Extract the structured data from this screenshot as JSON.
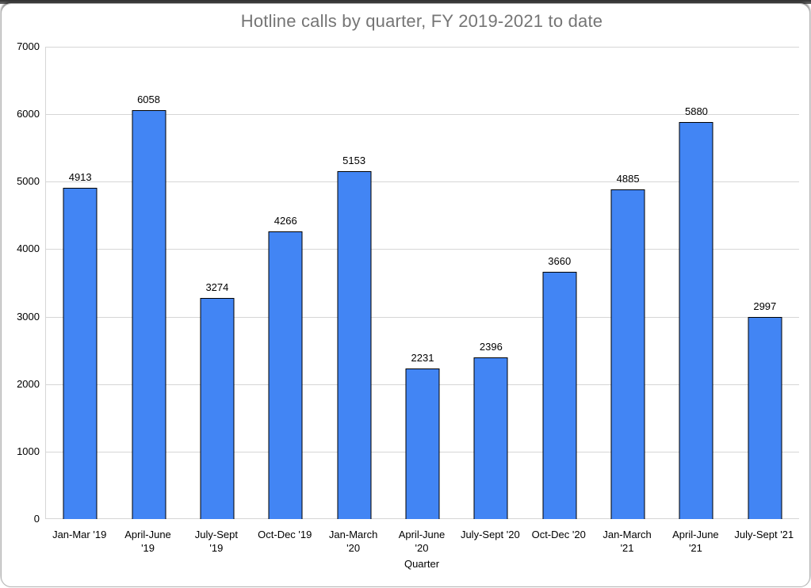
{
  "window": {
    "background_color": "#ffffff",
    "border_color": "#b4b4b4"
  },
  "chart_data": {
    "type": "bar",
    "title": "Hotline calls by quarter, FY 2019-2021 to date",
    "xlabel": "Quarter",
    "ylabel": "",
    "categories": [
      "Jan-Mar '19",
      "April-June '19",
      "July-Sept '19",
      "Oct-Dec '19",
      "Jan-March '20",
      "April-June '20",
      "July-Sept '20",
      "Oct-Dec '20",
      "Jan-March '21",
      "April-June '21",
      "July-Sept '21"
    ],
    "category_display_lines": [
      [
        "Jan-Mar '19"
      ],
      [
        "April-June",
        "'19"
      ],
      [
        "July-Sept",
        "'19"
      ],
      [
        "Oct-Dec '19"
      ],
      [
        "Jan-March",
        "'20"
      ],
      [
        "April-June",
        "'20"
      ],
      [
        "July-Sept '20"
      ],
      [
        "Oct-Dec '20"
      ],
      [
        "Jan-March",
        "'21"
      ],
      [
        "April-June",
        "'21"
      ],
      [
        "July-Sept '21"
      ]
    ],
    "values": [
      4913,
      6058,
      3274,
      4266,
      5153,
      2231,
      2396,
      3660,
      4885,
      5880,
      2997
    ],
    "ylim": [
      0,
      7000
    ],
    "yticks": [
      0,
      1000,
      2000,
      3000,
      4000,
      5000,
      6000,
      7000
    ],
    "grid": true,
    "legend": "none",
    "bar_color": "#4285f4",
    "bar_border_color": "#000000",
    "title_color": "#757575",
    "gridline_color": "#d6d6d6",
    "label_color": "#000000"
  }
}
